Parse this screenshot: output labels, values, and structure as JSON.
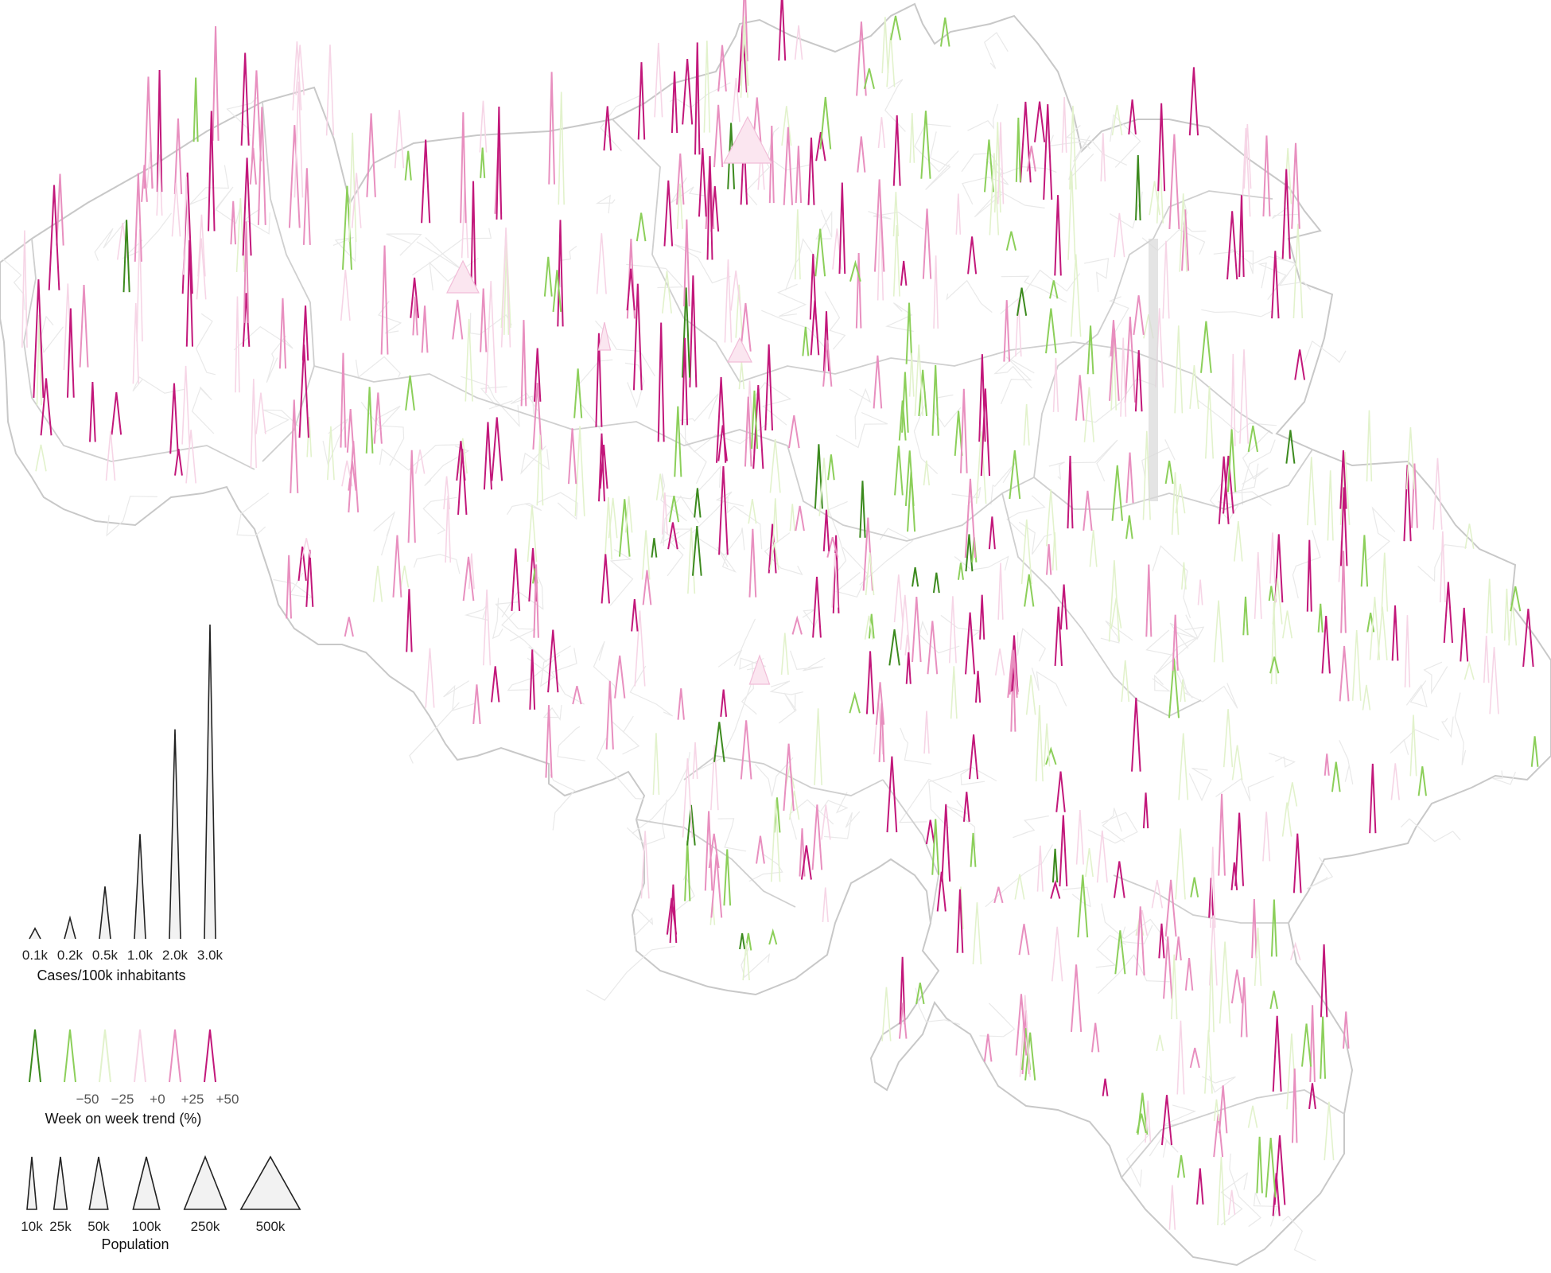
{
  "legend": {
    "cases": {
      "title": "Cases/100k inhabitants",
      "items": [
        {
          "label": "0.1k",
          "value": 100
        },
        {
          "label": "0.2k",
          "value": 200
        },
        {
          "label": "0.5k",
          "value": 500
        },
        {
          "label": "1.0k",
          "value": 1000
        },
        {
          "label": "2.0k",
          "value": 2000
        },
        {
          "label": "3.0k",
          "value": 3000
        }
      ]
    },
    "trend": {
      "title": "Week on week trend (%)",
      "items": [
        {
          "label": "",
          "value": -75,
          "color": "#3c8a1e"
        },
        {
          "label": "−50",
          "value": -50,
          "color": "#8ccf5a"
        },
        {
          "label": "−25",
          "value": -25,
          "color": "#e2f2cc"
        },
        {
          "label": "+0",
          "value": 0,
          "color": "#f6d5e6"
        },
        {
          "label": "+25",
          "value": 25,
          "color": "#e88fbf"
        },
        {
          "label": "+50",
          "value": 50,
          "color": "#c2177a"
        }
      ]
    },
    "population": {
      "title": "Population",
      "items": [
        {
          "label": "10k",
          "value": 10000
        },
        {
          "label": "25k",
          "value": 25000
        },
        {
          "label": "50k",
          "value": 50000
        },
        {
          "label": "100k",
          "value": 100000
        },
        {
          "label": "250k",
          "value": 250000
        },
        {
          "label": "500k",
          "value": 500000
        }
      ]
    }
  },
  "palette": {
    "strong_decrease": "#3c8a1e",
    "decrease": "#8ccf5a",
    "slight_decrease": "#e2f2cc",
    "slight_increase": "#f6d5e6",
    "increase": "#e88fbf",
    "strong_increase": "#c2177a",
    "border": "#c8c8c8",
    "inner_border": "#e9e9e9"
  }
}
